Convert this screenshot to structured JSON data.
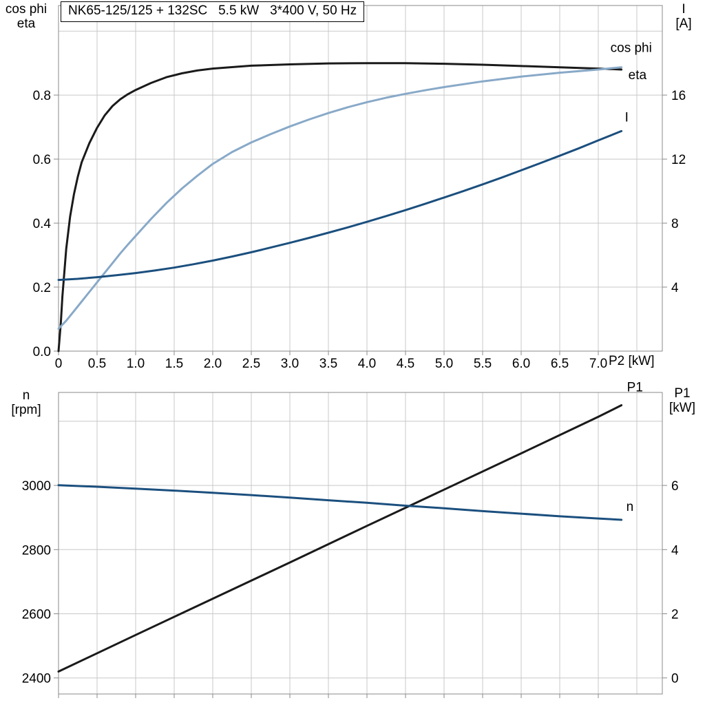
{
  "title": "NK65-125/125 + 132SC   5.5 kW   3*400 V, 50 Hz",
  "colors": {
    "black": "#1a1a1a",
    "light_blue": "#88A9C8",
    "dark_blue": "#1B4F7E",
    "grid": "#c8c8c8",
    "border": "#8a8a8a"
  },
  "chart_data": [
    {
      "type": "line",
      "title": "NK65-125/125 + 132SC   5.5 kW   3*400 V, 50 Hz",
      "x_axis": {
        "label": "P2 [kW]",
        "min": 0,
        "max": 7.83,
        "ticks": [
          0,
          0.5,
          1,
          1.5,
          2,
          2.5,
          3,
          3.5,
          4,
          4.5,
          5,
          5.5,
          6,
          6.5,
          7
        ],
        "tick_labels": [
          "0",
          "0.5",
          "1.0",
          "1.5",
          "2.0",
          "2.5",
          "3.0",
          "3.5",
          "4.0",
          "4.5",
          "5.0",
          "5.5",
          "6.0",
          "6.5",
          "7.0"
        ],
        "grid": [
          0.5,
          1,
          1.5,
          2,
          2.5,
          3,
          3.5,
          4,
          4.5,
          5,
          5.5,
          6,
          6.5,
          7,
          7.5
        ]
      },
      "y_left": {
        "title_lines": [
          "cos phi",
          "eta"
        ],
        "min": 0,
        "max": 1.08,
        "ticks": [
          0,
          0.2,
          0.4,
          0.6,
          0.8
        ],
        "tick_labels": [
          "0.0",
          "0.2",
          "0.4",
          "0.6",
          "0.8"
        ],
        "grid": [
          0.2,
          0.4,
          0.6,
          0.8,
          1.0
        ]
      },
      "y_right": {
        "title_lines": [
          "I",
          "[A]"
        ],
        "min": 0,
        "max": 21.6,
        "ticks": [
          4,
          8,
          12,
          16
        ],
        "tick_labels": [
          "4",
          "8",
          "12",
          "16"
        ],
        "grid": []
      },
      "series": [
        {
          "name": "eta",
          "axis": "left",
          "color_key": "black",
          "points": [
            [
              0,
              0
            ],
            [
              0.03,
              0.09
            ],
            [
              0.05,
              0.17
            ],
            [
              0.1,
              0.32
            ],
            [
              0.15,
              0.42
            ],
            [
              0.2,
              0.49
            ],
            [
              0.25,
              0.545
            ],
            [
              0.3,
              0.59
            ],
            [
              0.4,
              0.65
            ],
            [
              0.5,
              0.698
            ],
            [
              0.6,
              0.737
            ],
            [
              0.7,
              0.766
            ],
            [
              0.8,
              0.787
            ],
            [
              0.9,
              0.803
            ],
            [
              1.0,
              0.816
            ],
            [
              1.2,
              0.838
            ],
            [
              1.4,
              0.856
            ],
            [
              1.6,
              0.868
            ],
            [
              1.8,
              0.877
            ],
            [
              2.0,
              0.883
            ],
            [
              2.5,
              0.892
            ],
            [
              3.0,
              0.896
            ],
            [
              3.5,
              0.899
            ],
            [
              4.0,
              0.9
            ],
            [
              4.5,
              0.9
            ],
            [
              5.0,
              0.898
            ],
            [
              5.5,
              0.895
            ],
            [
              6.0,
              0.891
            ],
            [
              6.5,
              0.887
            ],
            [
              7.0,
              0.883
            ],
            [
              7.3,
              0.88
            ]
          ]
        },
        {
          "name": "cos phi",
          "axis": "left",
          "color_key": "light_blue",
          "points": [
            [
              0,
              0.07
            ],
            [
              0.1,
              0.095
            ],
            [
              0.2,
              0.125
            ],
            [
              0.3,
              0.155
            ],
            [
              0.4,
              0.185
            ],
            [
              0.5,
              0.215
            ],
            [
              0.6,
              0.245
            ],
            [
              0.7,
              0.275
            ],
            [
              0.8,
              0.305
            ],
            [
              0.9,
              0.333
            ],
            [
              1.0,
              0.36
            ],
            [
              1.2,
              0.413
            ],
            [
              1.4,
              0.463
            ],
            [
              1.6,
              0.508
            ],
            [
              1.8,
              0.548
            ],
            [
              2.0,
              0.585
            ],
            [
              2.25,
              0.622
            ],
            [
              2.5,
              0.652
            ],
            [
              2.75,
              0.678
            ],
            [
              3.0,
              0.702
            ],
            [
              3.25,
              0.724
            ],
            [
              3.5,
              0.744
            ],
            [
              3.75,
              0.762
            ],
            [
              4.0,
              0.778
            ],
            [
              4.25,
              0.792
            ],
            [
              4.5,
              0.804
            ],
            [
              4.75,
              0.815
            ],
            [
              5.0,
              0.825
            ],
            [
              5.5,
              0.843
            ],
            [
              6.0,
              0.858
            ],
            [
              6.5,
              0.87
            ],
            [
              7.0,
              0.88
            ],
            [
              7.3,
              0.887
            ]
          ]
        },
        {
          "name": "I",
          "axis": "right",
          "color_key": "dark_blue",
          "points": [
            [
              0,
              4.45
            ],
            [
              0.25,
              4.52
            ],
            [
              0.5,
              4.62
            ],
            [
              0.75,
              4.74
            ],
            [
              1.0,
              4.88
            ],
            [
              1.25,
              5.04
            ],
            [
              1.5,
              5.22
            ],
            [
              1.75,
              5.43
            ],
            [
              2.0,
              5.66
            ],
            [
              2.25,
              5.91
            ],
            [
              2.5,
              6.18
            ],
            [
              2.75,
              6.47
            ],
            [
              3.0,
              6.77
            ],
            [
              3.25,
              7.08
            ],
            [
              3.5,
              7.4
            ],
            [
              3.75,
              7.73
            ],
            [
              4.0,
              8.08
            ],
            [
              4.25,
              8.44
            ],
            [
              4.5,
              8.81
            ],
            [
              4.75,
              9.2
            ],
            [
              5.0,
              9.6
            ],
            [
              5.25,
              10.0
            ],
            [
              5.5,
              10.42
            ],
            [
              5.75,
              10.85
            ],
            [
              6.0,
              11.3
            ],
            [
              6.25,
              11.75
            ],
            [
              6.5,
              12.21
            ],
            [
              6.75,
              12.68
            ],
            [
              7.0,
              13.17
            ],
            [
              7.3,
              13.75
            ]
          ]
        }
      ]
    },
    {
      "type": "line",
      "title": "",
      "x_axis": {
        "label": "",
        "min": 0,
        "max": 7.83,
        "ticks": [
          0,
          0.5,
          1,
          1.5,
          2,
          2.5,
          3,
          3.5,
          4,
          4.5,
          5,
          5.5,
          6,
          6.5,
          7
        ],
        "grid": [
          0.5,
          1,
          1.5,
          2,
          2.5,
          3,
          3.5,
          4,
          4.5,
          5,
          5.5,
          6,
          6.5,
          7,
          7.5
        ]
      },
      "y_left": {
        "title_lines": [
          "n",
          "[rpm]"
        ],
        "min": 2350,
        "max": 3290,
        "ticks": [
          2400,
          2600,
          2800,
          3000
        ],
        "tick_labels": [
          "2400",
          "2600",
          "2800",
          "3000"
        ],
        "grid": [
          2400,
          2600,
          2800,
          3000,
          3200
        ]
      },
      "y_right": {
        "title_lines": [
          "P1",
          "[kW]"
        ],
        "min": -0.5,
        "max": 8.9,
        "ticks": [
          0,
          2,
          4,
          6
        ],
        "tick_labels": [
          "0",
          "2",
          "4",
          "6"
        ],
        "grid": []
      },
      "series": [
        {
          "name": "P1",
          "axis": "right",
          "color_key": "black",
          "points": [
            [
              0,
              0.2
            ],
            [
              1,
              1.34
            ],
            [
              2,
              2.47
            ],
            [
              3,
              3.6
            ],
            [
              4,
              4.74
            ],
            [
              5,
              5.87
            ],
            [
              6,
              7.0
            ],
            [
              7,
              8.14
            ],
            [
              7.3,
              8.5
            ]
          ]
        },
        {
          "name": "n",
          "axis": "left",
          "color_key": "dark_blue",
          "points": [
            [
              0,
              3001
            ],
            [
              0.5,
              2996
            ],
            [
              1,
              2990
            ],
            [
              1.5,
              2984
            ],
            [
              2,
              2977
            ],
            [
              2.5,
              2970
            ],
            [
              3,
              2962
            ],
            [
              3.5,
              2954
            ],
            [
              4,
              2946
            ],
            [
              4.5,
              2937
            ],
            [
              5,
              2929
            ],
            [
              5.5,
              2920
            ],
            [
              6,
              2912
            ],
            [
              6.5,
              2904
            ],
            [
              7,
              2897
            ],
            [
              7.3,
              2893
            ]
          ]
        }
      ]
    }
  ]
}
